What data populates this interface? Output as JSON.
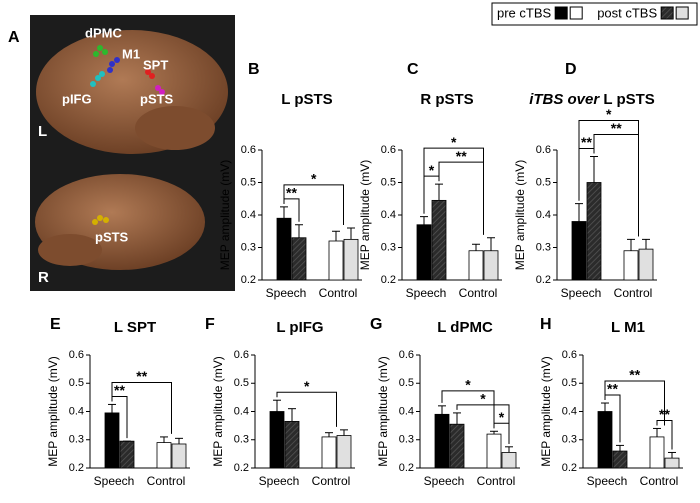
{
  "legend": {
    "items": [
      {
        "label": "pre cTBS",
        "colors": [
          "#000000",
          "#ffffff"
        ]
      },
      {
        "label": "post cTBS",
        "colors": [
          "#2b2b2b",
          "#e0e0e0"
        ]
      }
    ]
  },
  "panel_a": {
    "letter": "A",
    "labels": [
      "dPMC",
      "M1",
      "SPT",
      "pIFG",
      "pSTS",
      "L",
      "pSTS",
      "R"
    ]
  },
  "chart_data": [
    {
      "type": "bar",
      "letter": "B",
      "title": "L pSTS",
      "ylabel": "MEP amplitude (mV)",
      "categories": [
        "Speech",
        "Control"
      ],
      "ylim": [
        0.2,
        0.6
      ],
      "yticks": [
        0.2,
        0.3,
        0.4,
        0.5,
        0.6
      ],
      "series": [
        {
          "colors": [
            "#000000",
            "#ffffff"
          ],
          "values": [
            0.39,
            0.32
          ],
          "errors": [
            0.035,
            0.03
          ]
        },
        {
          "colors": [
            "#2b2b2b",
            "#e0e0e0"
          ],
          "values": [
            0.33,
            0.325
          ],
          "errors": [
            0.04,
            0.035
          ]
        }
      ],
      "annotations": [
        {
          "label": "**",
          "from": 0,
          "to": 1
        },
        {
          "label": "*",
          "from": 0,
          "to": 2.5
        }
      ]
    },
    {
      "type": "bar",
      "letter": "C",
      "title": "R pSTS",
      "ylabel": "MEP amplitude (mV)",
      "categories": [
        "Speech",
        "Control"
      ],
      "ylim": [
        0.2,
        0.6
      ],
      "yticks": [
        0.2,
        0.3,
        0.4,
        0.5,
        0.6
      ],
      "series": [
        {
          "colors": [
            "#000000",
            "#ffffff"
          ],
          "values": [
            0.37,
            0.29
          ],
          "errors": [
            0.025,
            0.02
          ]
        },
        {
          "colors": [
            "#2b2b2b",
            "#e0e0e0"
          ],
          "values": [
            0.445,
            0.29
          ],
          "errors": [
            0.05,
            0.04
          ]
        }
      ],
      "annotations": [
        {
          "label": "*",
          "from": 0,
          "to": 1
        },
        {
          "label": "**",
          "from": 1,
          "to": 2.5
        },
        {
          "label": "*",
          "from": 0,
          "to": 2.5
        }
      ]
    },
    {
      "type": "bar",
      "letter": "D",
      "title_parts": [
        "iTBS over",
        "L pSTS"
      ],
      "ylabel": "MEP amplitude (mV)",
      "categories": [
        "Speech",
        "Control"
      ],
      "ylim": [
        0.2,
        0.6
      ],
      "yticks": [
        0.2,
        0.3,
        0.4,
        0.5,
        0.6
      ],
      "series": [
        {
          "colors": [
            "#000000",
            "#ffffff"
          ],
          "values": [
            0.38,
            0.29
          ],
          "errors": [
            0.055,
            0.035
          ]
        },
        {
          "colors": [
            "#2b2b2b",
            "#e0e0e0"
          ],
          "values": [
            0.5,
            0.295
          ],
          "errors": [
            0.08,
            0.03
          ]
        }
      ],
      "annotations": [
        {
          "label": "**",
          "from": 0,
          "to": 1
        },
        {
          "label": "**",
          "from": 1,
          "to": 2.5
        },
        {
          "label": "*",
          "from": 0,
          "to": 2.5
        }
      ]
    },
    {
      "type": "bar",
      "letter": "E",
      "title": "L SPT",
      "ylabel": "MEP amplitude (mV)",
      "categories": [
        "Speech",
        "Control"
      ],
      "ylim": [
        0.2,
        0.6
      ],
      "yticks": [
        0.2,
        0.3,
        0.4,
        0.5,
        0.6
      ],
      "series": [
        {
          "colors": [
            "#000000",
            "#ffffff"
          ],
          "values": [
            0.395,
            0.29
          ],
          "errors": [
            0.03,
            0.02
          ]
        },
        {
          "colors": [
            "#2b2b2b",
            "#e0e0e0"
          ],
          "values": [
            0.295,
            0.285
          ],
          "errors": [
            0,
            0.02
          ]
        }
      ],
      "annotations": [
        {
          "label": "**",
          "from": 0,
          "to": 1
        },
        {
          "label": "**",
          "from": 0,
          "to": 2.5
        }
      ]
    },
    {
      "type": "bar",
      "letter": "F",
      "title": "L pIFG",
      "ylabel": "MEP amplitude (mV)",
      "categories": [
        "Speech",
        "Control"
      ],
      "ylim": [
        0.2,
        0.6
      ],
      "yticks": [
        0.2,
        0.3,
        0.4,
        0.5,
        0.6
      ],
      "series": [
        {
          "colors": [
            "#000000",
            "#ffffff"
          ],
          "values": [
            0.4,
            0.31
          ],
          "errors": [
            0.04,
            0.015
          ]
        },
        {
          "colors": [
            "#2b2b2b",
            "#e0e0e0"
          ],
          "values": [
            0.365,
            0.315
          ],
          "errors": [
            0.045,
            0.02
          ]
        }
      ],
      "annotations": [
        {
          "label": "*",
          "from": 0,
          "to": 2.5
        }
      ]
    },
    {
      "type": "bar",
      "letter": "G",
      "title": "L dPMC",
      "ylabel": "MEP amplitude (mV)",
      "categories": [
        "Speech",
        "Control"
      ],
      "ylim": [
        0.2,
        0.6
      ],
      "yticks": [
        0.2,
        0.3,
        0.4,
        0.5,
        0.6
      ],
      "series": [
        {
          "colors": [
            "#000000",
            "#ffffff"
          ],
          "values": [
            0.39,
            0.32
          ],
          "errors": [
            0.03,
            0.01
          ]
        },
        {
          "colors": [
            "#2b2b2b",
            "#e0e0e0"
          ],
          "values": [
            0.355,
            0.255
          ],
          "errors": [
            0.04,
            0.02
          ]
        }
      ],
      "annotations": [
        {
          "label": "*",
          "from": 2,
          "to": 3
        },
        {
          "label": "*",
          "from": 1,
          "to": 3
        },
        {
          "label": "*",
          "from": 0,
          "to": 2
        }
      ]
    },
    {
      "type": "bar",
      "letter": "H",
      "title": "L M1",
      "ylabel": "MEP amplitude (mV)",
      "categories": [
        "Speech",
        "Control"
      ],
      "ylim": [
        0.2,
        0.6
      ],
      "yticks": [
        0.2,
        0.3,
        0.4,
        0.5,
        0.6
      ],
      "series": [
        {
          "colors": [
            "#000000",
            "#ffffff"
          ],
          "values": [
            0.4,
            0.31
          ],
          "errors": [
            0.03,
            0.03
          ]
        },
        {
          "colors": [
            "#2b2b2b",
            "#e0e0e0"
          ],
          "values": [
            0.26,
            0.235
          ],
          "errors": [
            0.02,
            0.02
          ]
        }
      ],
      "annotations": [
        {
          "label": "**",
          "from": 0,
          "to": 1
        },
        {
          "label": "**",
          "from": 2,
          "to": 3
        },
        {
          "label": "**",
          "from": 0,
          "to": 2.5
        }
      ]
    }
  ]
}
